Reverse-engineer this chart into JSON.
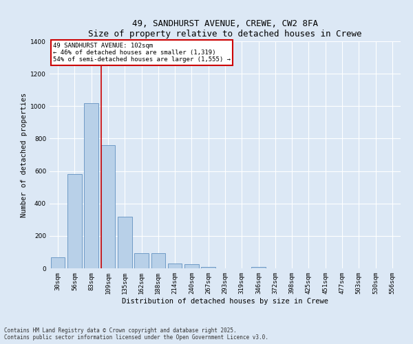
{
  "title1": "49, SANDHURST AVENUE, CREWE, CW2 8FA",
  "title2": "Size of property relative to detached houses in Crewe",
  "xlabel": "Distribution of detached houses by size in Crewe",
  "ylabel": "Number of detached properties",
  "categories": [
    "30sqm",
    "56sqm",
    "83sqm",
    "109sqm",
    "135sqm",
    "162sqm",
    "188sqm",
    "214sqm",
    "240sqm",
    "267sqm",
    "293sqm",
    "319sqm",
    "346sqm",
    "372sqm",
    "398sqm",
    "425sqm",
    "451sqm",
    "477sqm",
    "503sqm",
    "530sqm",
    "556sqm"
  ],
  "values": [
    70,
    580,
    1020,
    760,
    320,
    95,
    95,
    30,
    25,
    10,
    0,
    0,
    10,
    0,
    0,
    0,
    0,
    0,
    0,
    0,
    0
  ],
  "bar_color": "#b8d0e8",
  "bar_edge_color": "#6090c0",
  "red_line_x": 3,
  "annotation_title": "49 SANDHURST AVENUE: 102sqm",
  "annotation_line1": "← 46% of detached houses are smaller (1,319)",
  "annotation_line2": "54% of semi-detached houses are larger (1,555) →",
  "annotation_box_color": "#ffffff",
  "annotation_box_edge": "#cc0000",
  "red_line_color": "#cc0000",
  "ylim": [
    0,
    1400
  ],
  "yticks": [
    0,
    200,
    400,
    600,
    800,
    1000,
    1200,
    1400
  ],
  "footer1": "Contains HM Land Registry data © Crown copyright and database right 2025.",
  "footer2": "Contains public sector information licensed under the Open Government Licence v3.0.",
  "bg_color": "#dce8f5",
  "plot_bg_color": "#dce8f5",
  "grid_color": "#ffffff",
  "title_fontsize": 9,
  "label_fontsize": 7.5,
  "tick_fontsize": 6.5,
  "footer_fontsize": 5.5
}
